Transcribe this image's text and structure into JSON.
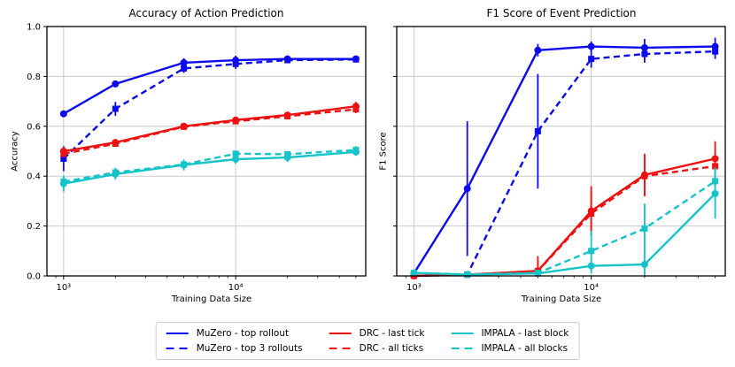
{
  "figure": {
    "background": "#ffffff"
  },
  "colors": {
    "blue": "#0b0bee",
    "red": "#ee1111",
    "cyan": "#15c3c9",
    "grid": "#c9c9c9",
    "axis": "#000000",
    "legend_border": "#cccccc"
  },
  "legend": {
    "entries": [
      {
        "label": "MuZero - top rollout",
        "color_key": "blue",
        "dash": false
      },
      {
        "label": "MuZero - top 3 rollouts",
        "color_key": "blue",
        "dash": true
      },
      {
        "label": "DRC - last tick",
        "color_key": "red",
        "dash": false
      },
      {
        "label": "DRC - all ticks",
        "color_key": "red",
        "dash": true
      },
      {
        "label": "IMPALA - last block",
        "color_key": "cyan",
        "dash": false
      },
      {
        "label": "IMPALA - all blocks",
        "color_key": "cyan",
        "dash": true
      }
    ]
  },
  "chart_data": [
    {
      "type": "line",
      "title": "Accuracy of Action Prediction",
      "xlabel": "Training Data Size",
      "ylabel": "Accuracy",
      "xscale": "log",
      "grid": true,
      "x": [
        1000,
        2000,
        5000,
        10000,
        20000,
        50000
      ],
      "xlim": [
        800,
        57000
      ],
      "ylim": [
        0.0,
        1.0
      ],
      "yticks": [
        0.0,
        0.2,
        0.4,
        0.6,
        0.8,
        1.0
      ],
      "ytick_labels": [
        "0.0",
        "0.2",
        "0.4",
        "0.6",
        "0.8",
        "1.0"
      ],
      "xticks": [
        {
          "value": 1000,
          "label": "10³"
        },
        {
          "value": 10000,
          "label": "10⁴"
        }
      ],
      "series": [
        {
          "name": "MuZero - top rollout",
          "color_key": "blue",
          "dash": false,
          "marker": "circle",
          "values": [
            0.65,
            0.77,
            0.855,
            0.865,
            0.87,
            0.87
          ],
          "yerr": [
            0.012,
            0.012,
            0.018,
            0.018,
            0.012,
            0.012
          ]
        },
        {
          "name": "MuZero - top 3 rollouts",
          "color_key": "blue",
          "dash": true,
          "marker": "square",
          "values": [
            0.47,
            0.67,
            0.832,
            0.85,
            0.865,
            0.868
          ],
          "yerr": [
            0.05,
            0.028,
            0.018,
            0.02,
            0.012,
            0.012
          ]
        },
        {
          "name": "DRC - last tick",
          "color_key": "red",
          "dash": false,
          "marker": "circle",
          "values": [
            0.5,
            0.535,
            0.6,
            0.625,
            0.645,
            0.68
          ],
          "yerr": [
            0.018,
            0.012,
            0.012,
            0.012,
            0.012,
            0.018
          ]
        },
        {
          "name": "DRC - all ticks",
          "color_key": "red",
          "dash": true,
          "marker": "square",
          "values": [
            0.49,
            0.53,
            0.598,
            0.62,
            0.64,
            0.668
          ],
          "yerr": [
            0.015,
            0.012,
            0.012,
            0.012,
            0.012,
            0.015
          ]
        },
        {
          "name": "IMPALA - last block",
          "color_key": "cyan",
          "dash": false,
          "marker": "circle",
          "values": [
            0.37,
            0.408,
            0.445,
            0.468,
            0.475,
            0.497
          ],
          "yerr": [
            0.032,
            0.022,
            0.022,
            0.018,
            0.018,
            0.015
          ]
        },
        {
          "name": "IMPALA - all blocks",
          "color_key": "cyan",
          "dash": true,
          "marker": "square",
          "values": [
            0.378,
            0.415,
            0.447,
            0.49,
            0.488,
            0.505
          ],
          "yerr": [
            0.02,
            0.018,
            0.015,
            0.012,
            0.012,
            0.015
          ]
        }
      ]
    },
    {
      "type": "line",
      "title": "F1 Score of Event Prediction",
      "xlabel": "Training Data Size",
      "ylabel": "F1 Score",
      "xscale": "log",
      "grid": true,
      "x": [
        1000,
        2000,
        5000,
        10000,
        20000,
        50000
      ],
      "xlim": [
        800,
        57000
      ],
      "ylim": [
        0.0,
        1.0
      ],
      "yticks": [
        0.0,
        0.2,
        0.4,
        0.6,
        0.8,
        1.0
      ],
      "ytick_labels": [],
      "xticks": [
        {
          "value": 1000,
          "label": "10³"
        },
        {
          "value": 10000,
          "label": "10⁴"
        }
      ],
      "series": [
        {
          "name": "MuZero - top rollout",
          "color_key": "blue",
          "dash": false,
          "marker": "circle",
          "values": [
            0.01,
            0.35,
            0.905,
            0.92,
            0.915,
            0.92
          ],
          "yerr": [
            0,
            0.27,
            0.025,
            0.02,
            0.035,
            0.035
          ]
        },
        {
          "name": "MuZero - top 3 rollouts",
          "color_key": "blue",
          "dash": true,
          "marker": "square",
          "values": [
            0.0,
            0.005,
            0.58,
            0.87,
            0.89,
            0.9
          ],
          "yerr": [
            0,
            0,
            0.23,
            0.035,
            0.035,
            0.03
          ]
        },
        {
          "name": "DRC - last tick",
          "color_key": "red",
          "dash": false,
          "marker": "circle",
          "values": [
            0.0,
            0.005,
            0.02,
            0.26,
            0.405,
            0.47
          ],
          "yerr": [
            0,
            0.005,
            0.06,
            0.1,
            0.085,
            0.07
          ]
        },
        {
          "name": "DRC - all ticks",
          "color_key": "red",
          "dash": true,
          "marker": "square",
          "values": [
            0.0,
            0.005,
            0.02,
            0.25,
            0.4,
            0.44
          ],
          "yerr": [
            0,
            0.005,
            0.04,
            0.09,
            0.08,
            0.05
          ]
        },
        {
          "name": "IMPALA - last block",
          "color_key": "cyan",
          "dash": false,
          "marker": "circle",
          "values": [
            0.012,
            0.005,
            0.01,
            0.04,
            0.046,
            0.33
          ],
          "yerr": [
            0.01,
            0.005,
            0.01,
            0.03,
            0.045,
            0.1
          ]
        },
        {
          "name": "IMPALA - all blocks",
          "color_key": "cyan",
          "dash": true,
          "marker": "square",
          "values": [
            0.012,
            0.006,
            0.012,
            0.1,
            0.19,
            0.38
          ],
          "yerr": [
            0.01,
            0.005,
            0.01,
            0.08,
            0.1,
            0.055
          ]
        }
      ]
    }
  ]
}
